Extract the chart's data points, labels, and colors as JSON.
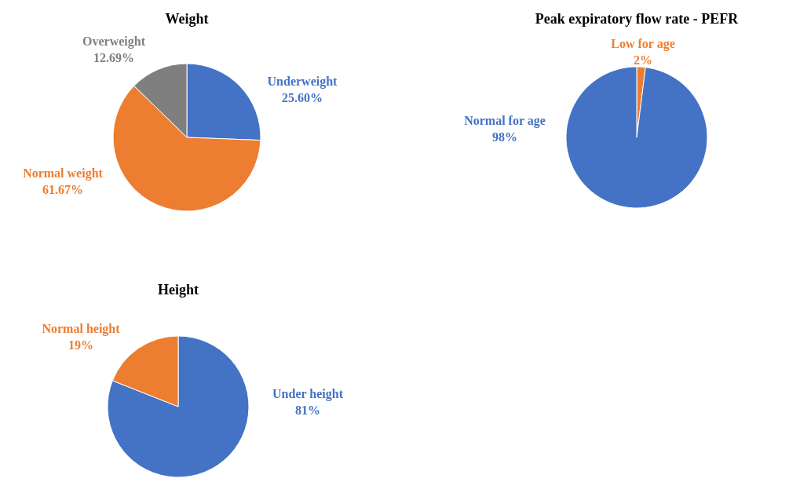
{
  "chart_data": [
    {
      "type": "pie",
      "title": "Weight",
      "categories": [
        "Underweight",
        "Normal weight",
        "Overweight"
      ],
      "values": [
        25.6,
        61.67,
        12.69
      ],
      "colors": [
        "#4472c4",
        "#ed7d31",
        "#7f7f7f"
      ],
      "value_labels": [
        "25.60%",
        "61.67%",
        "12.69%"
      ]
    },
    {
      "type": "pie",
      "title": "Peak expiratory flow rate - PEFR",
      "categories": [
        "Low for age",
        "Normal for age"
      ],
      "values": [
        2,
        98
      ],
      "colors": [
        "#ed7d31",
        "#4472c4"
      ],
      "value_labels": [
        "2%",
        "98%"
      ]
    },
    {
      "type": "pie",
      "title": "Height",
      "categories": [
        "Under height",
        "Normal height"
      ],
      "values": [
        81,
        19
      ],
      "colors": [
        "#4472c4",
        "#ed7d31"
      ],
      "value_labels": [
        "81%",
        "19%"
      ]
    }
  ]
}
